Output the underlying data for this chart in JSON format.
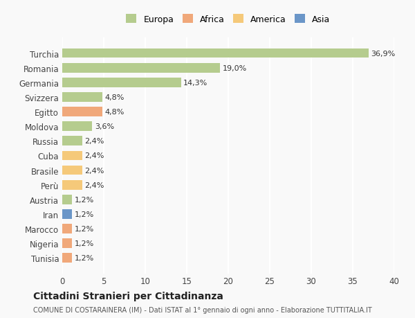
{
  "countries": [
    "Turchia",
    "Romania",
    "Germania",
    "Svizzera",
    "Egitto",
    "Moldova",
    "Russia",
    "Cuba",
    "Brasile",
    "Perù",
    "Austria",
    "Iran",
    "Marocco",
    "Nigeria",
    "Tunisia"
  ],
  "values": [
    36.9,
    19.0,
    14.3,
    4.8,
    4.8,
    3.6,
    2.4,
    2.4,
    2.4,
    2.4,
    1.2,
    1.2,
    1.2,
    1.2,
    1.2
  ],
  "labels": [
    "36,9%",
    "19,0%",
    "14,3%",
    "4,8%",
    "4,8%",
    "3,6%",
    "2,4%",
    "2,4%",
    "2,4%",
    "2,4%",
    "1,2%",
    "1,2%",
    "1,2%",
    "1,2%",
    "1,2%"
  ],
  "continents": [
    "Europa",
    "Europa",
    "Europa",
    "Europa",
    "Africa",
    "Europa",
    "Europa",
    "America",
    "America",
    "America",
    "Europa",
    "Asia",
    "Africa",
    "Africa",
    "Africa"
  ],
  "continent_colors": {
    "Europa": "#b5cc8e",
    "Africa": "#f0a87a",
    "America": "#f5c97a",
    "Asia": "#6b96c8"
  },
  "legend_order": [
    "Europa",
    "Africa",
    "America",
    "Asia"
  ],
  "xlim": [
    0,
    40
  ],
  "xticks": [
    0,
    5,
    10,
    15,
    20,
    25,
    30,
    35,
    40
  ],
  "title": "Cittadini Stranieri per Cittadinanza",
  "subtitle": "COMUNE DI COSTARAINERA (IM) - Dati ISTAT al 1° gennaio di ogni anno - Elaborazione TUTTITALIA.IT",
  "bg_color": "#f9f9f9",
  "grid_color": "#ffffff",
  "bar_height": 0.65
}
